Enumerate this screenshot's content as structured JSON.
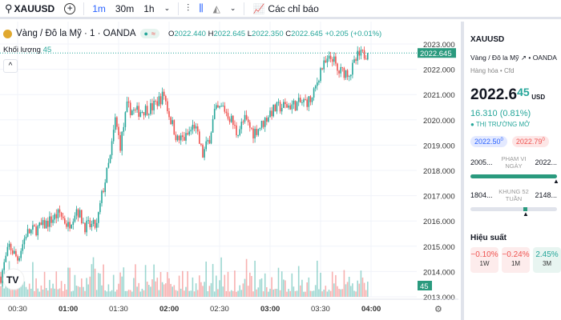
{
  "toolbar": {
    "symbol": "XAUUSD",
    "intervals": [
      "1m",
      "30m",
      "1h"
    ],
    "indicators": "Các chỉ báo"
  },
  "legend": {
    "title": "Vàng / Đô la Mỹ · 1 · OANDA",
    "o_label": "O",
    "o": "2022.440",
    "h_label": "H",
    "h": "2022.645",
    "l_label": "L",
    "l": "2022.350",
    "c_label": "C",
    "c": "2022.645",
    "change": "+0.205 (+0.01%)",
    "volume_label": "Khối lượng",
    "volume": "45"
  },
  "colors": {
    "up": "#26a69a",
    "down": "#ef5350",
    "accent": "#2962ff"
  },
  "chart_data": {
    "type": "candlestick",
    "ylim": [
      2013,
      2023
    ],
    "y_ticks": [
      "2023.000",
      "2022.000",
      "2021.000",
      "2020.000",
      "2019.000",
      "2018.000",
      "2017.000",
      "2016.000",
      "2015.000",
      "2014.000",
      "2013.000"
    ],
    "x_ticks": [
      "00:30",
      "01:00",
      "01:30",
      "02:00",
      "02:30",
      "03:00",
      "03:30",
      "04:00"
    ],
    "last_price": "2022.645",
    "last_volume": "45",
    "close_keypoints_min_from_0020": [
      [
        0,
        2013.8
      ],
      [
        5,
        2015.0
      ],
      [
        10,
        2014.5
      ],
      [
        15,
        2015.5
      ],
      [
        25,
        2015.8
      ],
      [
        35,
        2016.3
      ],
      [
        40,
        2015.8
      ],
      [
        45,
        2016.5
      ],
      [
        50,
        2015.8
      ],
      [
        57,
        2015.8
      ],
      [
        60,
        2017
      ],
      [
        65,
        2018.5
      ],
      [
        68,
        2020
      ],
      [
        71,
        2019
      ],
      [
        75,
        2020.5
      ],
      [
        80,
        2020.3
      ],
      [
        90,
        2020.5
      ],
      [
        97,
        2021
      ],
      [
        100,
        2020.2
      ],
      [
        105,
        2019.2
      ],
      [
        110,
        2019.3
      ],
      [
        115,
        2019.8
      ],
      [
        120,
        2018.6
      ],
      [
        124,
        2019.3
      ],
      [
        127,
        2020.3
      ],
      [
        132,
        2020.5
      ],
      [
        137,
        2020
      ],
      [
        140,
        2019.5
      ],
      [
        145,
        2020
      ],
      [
        150,
        2019.5
      ],
      [
        155,
        2019.8
      ],
      [
        160,
        2020.3
      ],
      [
        165,
        2020.5
      ],
      [
        175,
        2020.6
      ],
      [
        185,
        2020.8
      ],
      [
        190,
        2022
      ],
      [
        197,
        2022.5
      ],
      [
        200,
        2021.9
      ],
      [
        208,
        2021.9
      ],
      [
        212,
        2022.5
      ],
      [
        218,
        2022.645
      ]
    ]
  },
  "panel": {
    "symbol": "XAUUSD",
    "name": "Vàng / Đô la Mỹ",
    "exchange": "OANDA",
    "category": "Hàng hóa • Cfd",
    "price_main": "2022.6",
    "price_tail": "45",
    "currency": "USD",
    "change": "16.310 (0.81%)",
    "status": "THỊ TRƯỜNG MỞ",
    "bid": "2022.50",
    "bid_sup": "0",
    "ask": "2022.79",
    "ask_sup": "0",
    "day_low": "2005...",
    "day_label": "PHẠM VI NGÀY",
    "day_high": "2022...",
    "day_pos": 1.0,
    "wk_low": "1804...",
    "wk_label": "KHUNG 52 TUẦN",
    "wk_high": "2148...",
    "wk_pos": 0.63,
    "perf_title": "Hiệu suất",
    "perf": [
      {
        "v": "−0.10%",
        "p": "1W"
      },
      {
        "v": "−0.24%",
        "p": "1M"
      },
      {
        "v": "2.45%",
        "p": "3M"
      }
    ]
  }
}
